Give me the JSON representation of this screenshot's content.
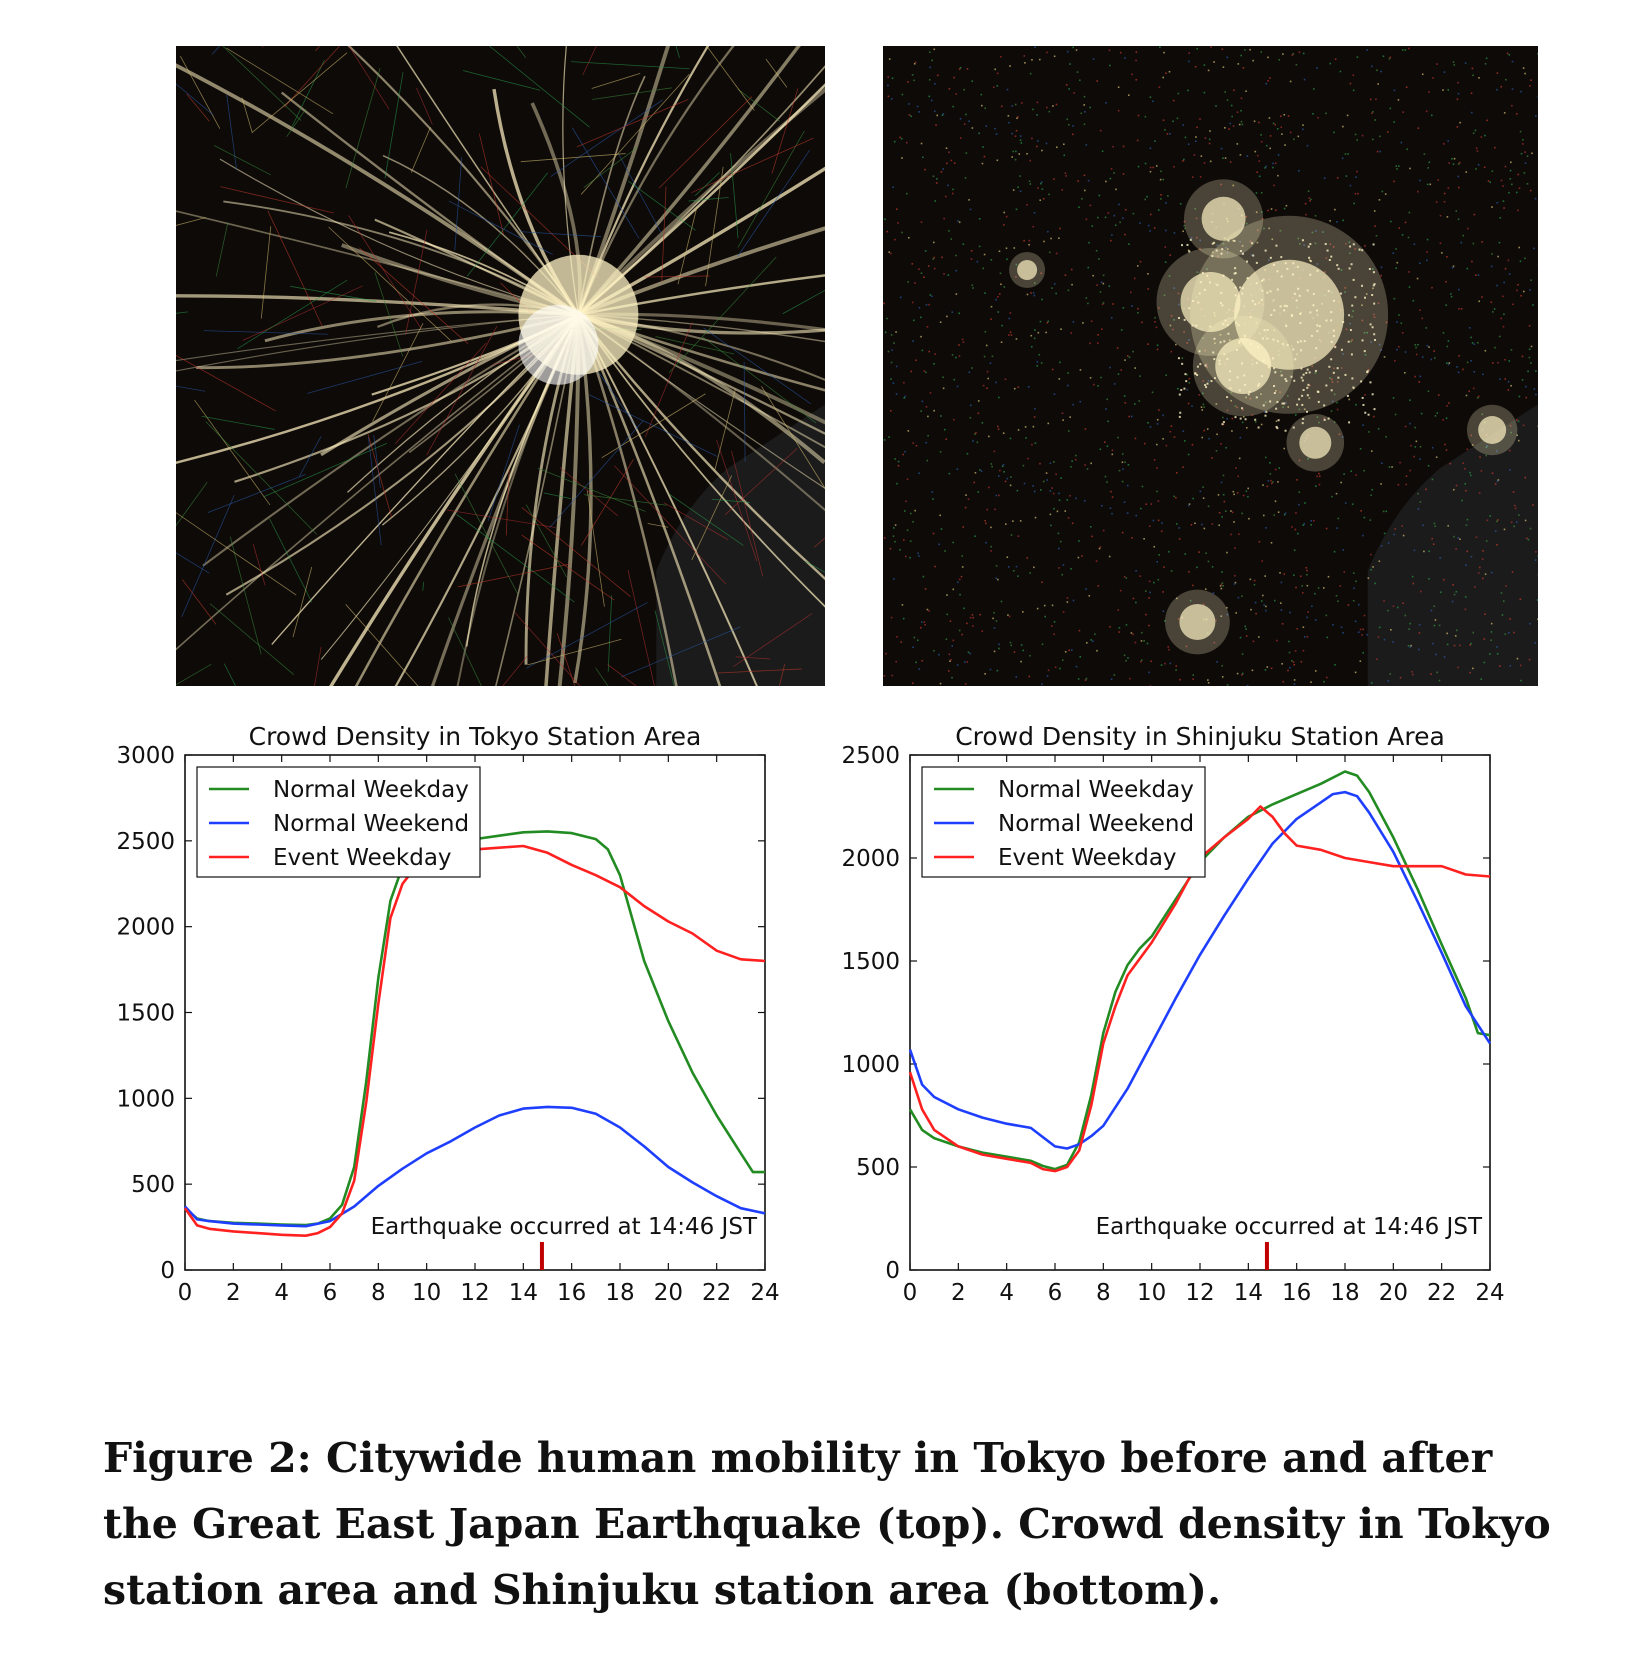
{
  "figure": {
    "caption": "Figure 2: Citywide human mobility in Tokyo before and after the Great East Japan Earthquake (top). Crowd density in Tokyo station area and Shinjuku station area (bottom)."
  },
  "maps": [
    {
      "id": "map-left",
      "image": "mobility-map-before-earthquake",
      "background": "#0d0a08",
      "glow": "#fff3c4"
    },
    {
      "id": "map-right",
      "image": "mobility-map-after-earthquake",
      "background": "#0d0a08",
      "glow": "#fff3c4"
    }
  ],
  "chart_data": [
    {
      "type": "line",
      "title": "Crowd Density in Tokyo Station Area",
      "xlabel": "",
      "ylabel": "",
      "xlim": [
        0,
        24
      ],
      "ylim": [
        0,
        3000
      ],
      "xticks": [
        0,
        2,
        4,
        6,
        8,
        10,
        12,
        14,
        16,
        18,
        20,
        22,
        24
      ],
      "yticks": [
        0,
        500,
        1000,
        1500,
        2000,
        2500,
        3000
      ],
      "legend_position": "top-left",
      "annotation": {
        "text": "Earthquake occurred at 14:46 JST",
        "x": 14.77,
        "color": "#c00000"
      },
      "series": [
        {
          "name": "Normal Weekday",
          "color": "#228b22",
          "x": [
            0,
            0.5,
            1,
            2,
            3,
            4,
            5,
            5.5,
            6,
            6.5,
            7,
            7.5,
            8,
            8.5,
            9,
            9.5,
            10,
            11,
            12,
            13,
            14,
            15,
            16,
            17,
            17.5,
            18,
            18.5,
            19,
            20,
            21,
            22,
            23,
            23.5,
            24
          ],
          "y": [
            360,
            300,
            285,
            275,
            270,
            265,
            262,
            270,
            300,
            380,
            600,
            1100,
            1700,
            2150,
            2350,
            2430,
            2470,
            2490,
            2510,
            2530,
            2550,
            2555,
            2545,
            2510,
            2450,
            2300,
            2050,
            1800,
            1450,
            1150,
            900,
            680,
            570,
            570
          ]
        },
        {
          "name": "Normal Weekend",
          "color": "#1f3fff",
          "x": [
            0,
            0.5,
            1,
            2,
            3,
            4,
            5,
            6,
            7,
            8,
            9,
            10,
            11,
            12,
            13,
            14,
            15,
            16,
            17,
            18,
            19,
            20,
            21,
            22,
            23,
            24
          ],
          "y": [
            370,
            295,
            285,
            270,
            265,
            260,
            255,
            285,
            370,
            490,
            590,
            680,
            750,
            830,
            900,
            940,
            950,
            945,
            910,
            830,
            720,
            600,
            510,
            430,
            360,
            330
          ]
        },
        {
          "name": "Event Weekday",
          "color": "#ff2020",
          "x": [
            0,
            0.5,
            1,
            2,
            3,
            4,
            5,
            5.5,
            6,
            6.5,
            7,
            7.5,
            8,
            8.5,
            9,
            9.5,
            10,
            11,
            12,
            13,
            14,
            15,
            16,
            17,
            18,
            19,
            20,
            21,
            22,
            23,
            24
          ],
          "y": [
            360,
            260,
            240,
            225,
            215,
            205,
            200,
            215,
            250,
            330,
            520,
            980,
            1550,
            2050,
            2250,
            2340,
            2390,
            2430,
            2450,
            2460,
            2470,
            2430,
            2360,
            2300,
            2230,
            2120,
            2030,
            1960,
            1860,
            1810,
            1800
          ]
        }
      ]
    },
    {
      "type": "line",
      "title": "Crowd Density in Shinjuku Station Area",
      "xlabel": "",
      "ylabel": "",
      "xlim": [
        0,
        24
      ],
      "ylim": [
        0,
        2500
      ],
      "xticks": [
        0,
        2,
        4,
        6,
        8,
        10,
        12,
        14,
        16,
        18,
        20,
        22,
        24
      ],
      "yticks": [
        0,
        500,
        1000,
        1500,
        2000,
        2500
      ],
      "legend_position": "top-left",
      "annotation": {
        "text": "Earthquake occurred at 14:46 JST",
        "x": 14.77,
        "color": "#c00000"
      },
      "series": [
        {
          "name": "Normal Weekday",
          "color": "#228b22",
          "x": [
            0,
            0.5,
            1,
            2,
            3,
            4,
            5,
            5.5,
            6,
            6.5,
            7,
            7.5,
            8,
            8.5,
            9,
            9.5,
            10,
            11,
            12,
            13,
            14,
            15,
            16,
            17,
            18,
            18.5,
            19,
            20,
            21,
            22,
            23,
            23.5,
            24
          ],
          "y": [
            780,
            680,
            640,
            600,
            570,
            550,
            530,
            505,
            490,
            510,
            620,
            850,
            1150,
            1350,
            1480,
            1560,
            1620,
            1800,
            1980,
            2100,
            2200,
            2260,
            2310,
            2360,
            2420,
            2400,
            2320,
            2100,
            1850,
            1580,
            1320,
            1150,
            1140
          ]
        },
        {
          "name": "Normal Weekend",
          "color": "#1f3fff",
          "x": [
            0,
            0.5,
            1,
            2,
            3,
            4,
            5,
            6,
            6.5,
            7,
            7.5,
            8,
            9,
            10,
            11,
            12,
            13,
            14,
            15,
            16,
            17,
            17.5,
            18,
            18.5,
            19,
            20,
            21,
            22,
            23,
            24
          ],
          "y": [
            1070,
            900,
            840,
            780,
            740,
            710,
            690,
            600,
            590,
            610,
            650,
            700,
            880,
            1100,
            1320,
            1530,
            1720,
            1900,
            2070,
            2190,
            2270,
            2310,
            2320,
            2300,
            2220,
            2030,
            1790,
            1540,
            1280,
            1100
          ]
        },
        {
          "name": "Event Weekday",
          "color": "#ff2020",
          "x": [
            0,
            0.5,
            1,
            2,
            3,
            4,
            5,
            5.5,
            6,
            6.5,
            7,
            7.5,
            8,
            8.5,
            9,
            10,
            11,
            12,
            13,
            14,
            14.5,
            15,
            15.5,
            16,
            17,
            18,
            19,
            20,
            21,
            22,
            23,
            24
          ],
          "y": [
            960,
            780,
            680,
            600,
            560,
            540,
            520,
            490,
            480,
            500,
            580,
            800,
            1100,
            1280,
            1430,
            1590,
            1780,
            2000,
            2100,
            2190,
            2250,
            2200,
            2120,
            2060,
            2040,
            2000,
            1980,
            1960,
            1960,
            1960,
            1920,
            1910
          ]
        }
      ]
    }
  ]
}
